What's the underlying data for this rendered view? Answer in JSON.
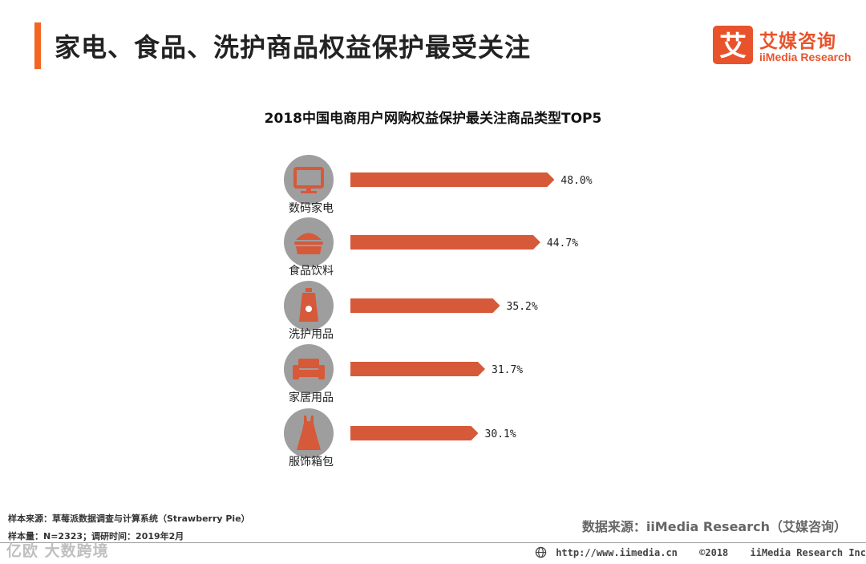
{
  "header": {
    "title": "家电、食品、洗护商品权益保护最受关注",
    "accent_color": "#f26522"
  },
  "logo": {
    "mark_char": "艾",
    "name_cn": "艾媒咨询",
    "name_en": "iiMedia Research",
    "color": "#e8532b"
  },
  "chart_data": {
    "type": "bar",
    "orientation": "horizontal",
    "title": "2018中国电商用户网购权益保护最关注商品类型TOP5",
    "categories": [
      "数码家电",
      "食品饮料",
      "洗护用品",
      "家居用品",
      "服饰箱包"
    ],
    "icons": [
      "tv-icon",
      "burger-icon",
      "lotion-bottle-icon",
      "sofa-icon",
      "dress-icon"
    ],
    "values": [
      48.0,
      44.7,
      35.2,
      31.7,
      30.1
    ],
    "value_labels": [
      "48.0%",
      "44.7%",
      "35.2%",
      "31.7%",
      "30.1%"
    ],
    "unit": "%",
    "xlim": [
      0,
      60
    ],
    "bar_color": "#d6593a",
    "icon_bg_color": "#9e9e9e",
    "icon_fg_color": "#d6593a",
    "grid": false,
    "legend": "none"
  },
  "footnotes": {
    "sample_source": "样本来源：草莓派数据调查与计算系统（Strawberry  Pie）",
    "sample_size": "样本量：N=2323；调研时间：2019年2月"
  },
  "data_source": "数据来源：iiMedia Research（艾媒咨询）",
  "footer": {
    "url": "http://www.iimedia.cn",
    "copyright": "©2018",
    "company": "iiMedia Research  Inc"
  },
  "watermark": "亿欧 大数跨境"
}
